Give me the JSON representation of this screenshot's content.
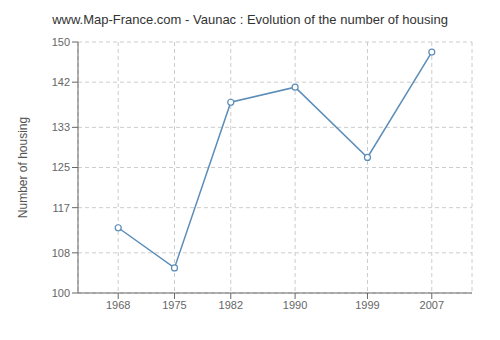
{
  "chart_data": {
    "type": "line",
    "title": "www.Map-France.com - Vaunac : Evolution of the number of housing",
    "ylabel": "Number of housing",
    "x": [
      1968,
      1975,
      1982,
      1990,
      1999,
      2007
    ],
    "values": [
      113,
      105,
      138,
      141,
      127,
      148
    ],
    "color": "#5b8db8",
    "marker": "circle",
    "xlim": [
      1963,
      2012
    ],
    "xticks": [
      1968,
      1975,
      1982,
      1990,
      1999,
      2007
    ],
    "ylim": [
      100,
      150
    ],
    "yticks": [
      100,
      108,
      117,
      125,
      133,
      142,
      150
    ],
    "grid": true
  }
}
